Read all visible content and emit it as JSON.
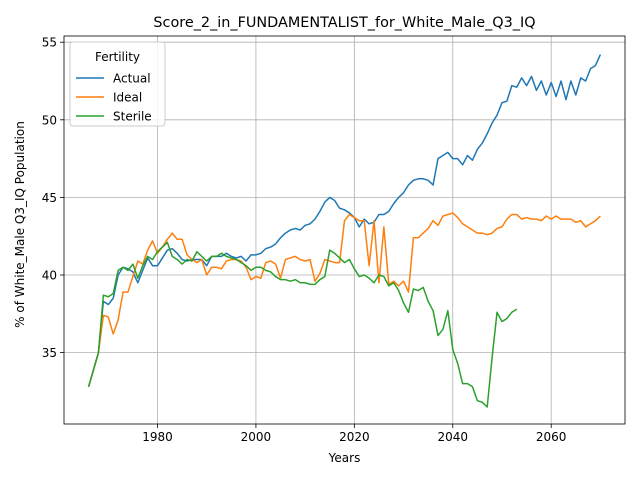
{
  "chart_data": {
    "type": "line",
    "title": "Score_2_in_FUNDAMENTALIST_for_White_Male_Q3_IQ",
    "xlabel": "Years",
    "ylabel": "% of White_Male Q3_IQ Population",
    "xlim": [
      1961,
      2075
    ],
    "ylim": [
      30.4,
      55.4
    ],
    "x_ticks": [
      1980,
      2000,
      2020,
      2040,
      2060
    ],
    "y_ticks": [
      35,
      40,
      45,
      50,
      55
    ],
    "grid": true,
    "legend": {
      "title": "Fertility",
      "position": "top-left"
    },
    "series": [
      {
        "name": "Actual",
        "color": "#1f77b4",
        "points": [
          [
            1966,
            32.8
          ],
          [
            1968,
            35.0
          ],
          [
            1969,
            38.3
          ],
          [
            1970,
            38.1
          ],
          [
            1971,
            38.5
          ],
          [
            1972,
            40.0
          ],
          [
            1973,
            40.5
          ],
          [
            1974,
            40.4
          ],
          [
            1975,
            40.2
          ],
          [
            1976,
            39.5
          ],
          [
            1977,
            40.3
          ],
          [
            1978,
            41.1
          ],
          [
            1979,
            40.6
          ],
          [
            1980,
            40.6
          ],
          [
            1981,
            41.1
          ],
          [
            1982,
            41.6
          ],
          [
            1983,
            41.7
          ],
          [
            1984,
            41.4
          ],
          [
            1985,
            41.0
          ],
          [
            1986,
            40.9
          ],
          [
            1987,
            41.0
          ],
          [
            1988,
            41.0
          ],
          [
            1989,
            41.0
          ],
          [
            1990,
            40.6
          ],
          [
            1991,
            41.2
          ],
          [
            1992,
            41.2
          ],
          [
            1993,
            41.2
          ],
          [
            1994,
            41.4
          ],
          [
            1995,
            41.2
          ],
          [
            1996,
            41.1
          ],
          [
            1997,
            41.2
          ],
          [
            1998,
            40.9
          ],
          [
            1999,
            41.3
          ],
          [
            2000,
            41.3
          ],
          [
            2001,
            41.4
          ],
          [
            2002,
            41.7
          ],
          [
            2003,
            41.8
          ],
          [
            2004,
            42.0
          ],
          [
            2005,
            42.4
          ],
          [
            2006,
            42.7
          ],
          [
            2007,
            42.9
          ],
          [
            2008,
            43.0
          ],
          [
            2009,
            42.9
          ],
          [
            2010,
            43.2
          ],
          [
            2011,
            43.3
          ],
          [
            2012,
            43.6
          ],
          [
            2013,
            44.1
          ],
          [
            2014,
            44.7
          ],
          [
            2015,
            45.0
          ],
          [
            2016,
            44.8
          ],
          [
            2017,
            44.3
          ],
          [
            2018,
            44.2
          ],
          [
            2019,
            44.0
          ],
          [
            2020,
            43.7
          ],
          [
            2021,
            43.1
          ],
          [
            2022,
            43.6
          ],
          [
            2023,
            43.3
          ],
          [
            2024,
            43.4
          ],
          [
            2025,
            43.9
          ],
          [
            2026,
            43.9
          ],
          [
            2027,
            44.1
          ],
          [
            2028,
            44.6
          ],
          [
            2029,
            45.0
          ],
          [
            2030,
            45.3
          ],
          [
            2031,
            45.8
          ],
          [
            2032,
            46.1
          ],
          [
            2033,
            46.2
          ],
          [
            2034,
            46.2
          ],
          [
            2035,
            46.1
          ],
          [
            2036,
            45.8
          ],
          [
            2037,
            47.5
          ],
          [
            2038,
            47.7
          ],
          [
            2039,
            47.9
          ],
          [
            2040,
            47.5
          ],
          [
            2041,
            47.5
          ],
          [
            2042,
            47.1
          ],
          [
            2043,
            47.7
          ],
          [
            2044,
            47.4
          ],
          [
            2045,
            48.1
          ],
          [
            2046,
            48.5
          ],
          [
            2047,
            49.1
          ],
          [
            2048,
            49.8
          ],
          [
            2049,
            50.3
          ],
          [
            2050,
            51.1
          ],
          [
            2051,
            51.2
          ],
          [
            2052,
            52.2
          ],
          [
            2053,
            52.1
          ],
          [
            2054,
            52.7
          ],
          [
            2055,
            52.2
          ],
          [
            2056,
            52.8
          ],
          [
            2057,
            51.9
          ],
          [
            2058,
            52.5
          ],
          [
            2059,
            51.6
          ],
          [
            2060,
            52.4
          ],
          [
            2061,
            51.5
          ],
          [
            2062,
            52.5
          ],
          [
            2063,
            51.3
          ],
          [
            2064,
            52.5
          ],
          [
            2065,
            51.6
          ],
          [
            2066,
            52.7
          ],
          [
            2067,
            52.5
          ],
          [
            2068,
            53.3
          ],
          [
            2069,
            53.5
          ],
          [
            2070,
            54.2
          ]
        ]
      },
      {
        "name": "Ideal",
        "color": "#ff7f0e",
        "points": [
          [
            1966,
            32.8
          ],
          [
            1968,
            35.0
          ],
          [
            1969,
            37.4
          ],
          [
            1970,
            37.3
          ],
          [
            1971,
            36.2
          ],
          [
            1972,
            37.1
          ],
          [
            1973,
            38.9
          ],
          [
            1974,
            38.9
          ],
          [
            1975,
            39.9
          ],
          [
            1976,
            40.9
          ],
          [
            1977,
            40.7
          ],
          [
            1978,
            41.6
          ],
          [
            1979,
            42.2
          ],
          [
            1980,
            41.4
          ],
          [
            1981,
            41.8
          ],
          [
            1982,
            42.3
          ],
          [
            1983,
            42.7
          ],
          [
            1984,
            42.3
          ],
          [
            1985,
            42.3
          ],
          [
            1986,
            41.3
          ],
          [
            1987,
            41.0
          ],
          [
            1988,
            40.8
          ],
          [
            1989,
            41.0
          ],
          [
            1990,
            40.0
          ],
          [
            1991,
            40.5
          ],
          [
            1992,
            40.5
          ],
          [
            1993,
            40.4
          ],
          [
            1994,
            40.9
          ],
          [
            1995,
            41.0
          ],
          [
            1996,
            41.0
          ],
          [
            1997,
            40.9
          ],
          [
            1998,
            40.5
          ],
          [
            1999,
            39.7
          ],
          [
            2000,
            39.9
          ],
          [
            2001,
            39.8
          ],
          [
            2002,
            40.8
          ],
          [
            2003,
            40.9
          ],
          [
            2004,
            40.7
          ],
          [
            2005,
            39.8
          ],
          [
            2006,
            41.0
          ],
          [
            2007,
            41.1
          ],
          [
            2008,
            41.2
          ],
          [
            2009,
            41.0
          ],
          [
            2010,
            40.9
          ],
          [
            2011,
            41.0
          ],
          [
            2012,
            39.6
          ],
          [
            2013,
            40.1
          ],
          [
            2014,
            41.0
          ],
          [
            2015,
            40.9
          ],
          [
            2016,
            40.8
          ],
          [
            2017,
            40.8
          ],
          [
            2018,
            43.5
          ],
          [
            2019,
            43.9
          ],
          [
            2020,
            43.7
          ],
          [
            2021,
            43.5
          ],
          [
            2022,
            43.5
          ],
          [
            2023,
            40.6
          ],
          [
            2024,
            43.5
          ],
          [
            2025,
            39.5
          ],
          [
            2026,
            43.1
          ],
          [
            2027,
            39.4
          ],
          [
            2028,
            39.6
          ],
          [
            2029,
            39.3
          ],
          [
            2030,
            39.6
          ],
          [
            2031,
            38.9
          ],
          [
            2032,
            42.4
          ],
          [
            2033,
            42.4
          ],
          [
            2034,
            42.7
          ],
          [
            2035,
            43.0
          ],
          [
            2036,
            43.5
          ],
          [
            2037,
            43.2
          ],
          [
            2038,
            43.8
          ],
          [
            2039,
            43.9
          ],
          [
            2040,
            44.0
          ],
          [
            2041,
            43.7
          ],
          [
            2042,
            43.3
          ],
          [
            2043,
            43.1
          ],
          [
            2044,
            42.9
          ],
          [
            2045,
            42.7
          ],
          [
            2046,
            42.7
          ],
          [
            2047,
            42.6
          ],
          [
            2048,
            42.7
          ],
          [
            2049,
            43.0
          ],
          [
            2050,
            43.1
          ],
          [
            2051,
            43.6
          ],
          [
            2052,
            43.9
          ],
          [
            2053,
            43.9
          ],
          [
            2054,
            43.6
          ],
          [
            2055,
            43.7
          ],
          [
            2056,
            43.6
          ],
          [
            2057,
            43.6
          ],
          [
            2058,
            43.5
          ],
          [
            2059,
            43.8
          ],
          [
            2060,
            43.6
          ],
          [
            2061,
            43.8
          ],
          [
            2062,
            43.6
          ],
          [
            2063,
            43.6
          ],
          [
            2064,
            43.6
          ],
          [
            2065,
            43.4
          ],
          [
            2066,
            43.5
          ],
          [
            2067,
            43.1
          ],
          [
            2068,
            43.3
          ],
          [
            2069,
            43.5
          ],
          [
            2070,
            43.8
          ]
        ]
      },
      {
        "name": "Sterile",
        "color": "#2ca02c",
        "points": [
          [
            1966,
            32.8
          ],
          [
            1968,
            35.0
          ],
          [
            1969,
            38.7
          ],
          [
            1970,
            38.6
          ],
          [
            1971,
            38.8
          ],
          [
            1972,
            40.3
          ],
          [
            1973,
            40.5
          ],
          [
            1974,
            40.3
          ],
          [
            1975,
            40.7
          ],
          [
            1976,
            39.8
          ],
          [
            1977,
            40.6
          ],
          [
            1978,
            41.2
          ],
          [
            1979,
            41.0
          ],
          [
            1980,
            41.5
          ],
          [
            1981,
            41.8
          ],
          [
            1982,
            42.1
          ],
          [
            1983,
            41.2
          ],
          [
            1984,
            41.0
          ],
          [
            1985,
            40.7
          ],
          [
            1986,
            41.0
          ],
          [
            1987,
            40.9
          ],
          [
            1988,
            41.5
          ],
          [
            1989,
            41.2
          ],
          [
            1990,
            40.9
          ],
          [
            1991,
            41.2
          ],
          [
            1992,
            41.2
          ],
          [
            1993,
            41.4
          ],
          [
            1994,
            41.2
          ],
          [
            1995,
            41.1
          ],
          [
            1996,
            41.0
          ],
          [
            1997,
            40.8
          ],
          [
            1998,
            40.6
          ],
          [
            1999,
            40.3
          ],
          [
            2000,
            40.5
          ],
          [
            2001,
            40.5
          ],
          [
            2002,
            40.3
          ],
          [
            2003,
            40.2
          ],
          [
            2004,
            39.9
          ],
          [
            2005,
            39.7
          ],
          [
            2006,
            39.7
          ],
          [
            2007,
            39.6
          ],
          [
            2008,
            39.7
          ],
          [
            2009,
            39.5
          ],
          [
            2010,
            39.5
          ],
          [
            2011,
            39.4
          ],
          [
            2012,
            39.4
          ],
          [
            2013,
            39.7
          ],
          [
            2014,
            39.9
          ],
          [
            2015,
            41.6
          ],
          [
            2016,
            41.4
          ],
          [
            2017,
            41.1
          ],
          [
            2018,
            40.8
          ],
          [
            2019,
            41.0
          ],
          [
            2020,
            40.4
          ],
          [
            2021,
            39.9
          ],
          [
            2022,
            40.0
          ],
          [
            2023,
            39.8
          ],
          [
            2024,
            39.5
          ],
          [
            2025,
            40.0
          ],
          [
            2026,
            39.9
          ],
          [
            2027,
            39.3
          ],
          [
            2028,
            39.5
          ],
          [
            2029,
            39.0
          ],
          [
            2030,
            38.2
          ],
          [
            2031,
            37.6
          ],
          [
            2032,
            39.1
          ],
          [
            2033,
            39.0
          ],
          [
            2034,
            39.2
          ],
          [
            2035,
            38.3
          ],
          [
            2036,
            37.7
          ],
          [
            2037,
            36.1
          ],
          [
            2038,
            36.5
          ],
          [
            2039,
            37.7
          ],
          [
            2040,
            35.2
          ],
          [
            2041,
            34.3
          ],
          [
            2042,
            33.0
          ],
          [
            2043,
            33.0
          ],
          [
            2044,
            32.8
          ],
          [
            2045,
            31.9
          ],
          [
            2046,
            31.8
          ],
          [
            2047,
            31.5
          ],
          [
            2048,
            34.7
          ],
          [
            2049,
            37.6
          ],
          [
            2050,
            37.0
          ],
          [
            2051,
            37.2
          ],
          [
            2052,
            37.6
          ],
          [
            2053,
            37.8
          ]
        ]
      }
    ]
  }
}
